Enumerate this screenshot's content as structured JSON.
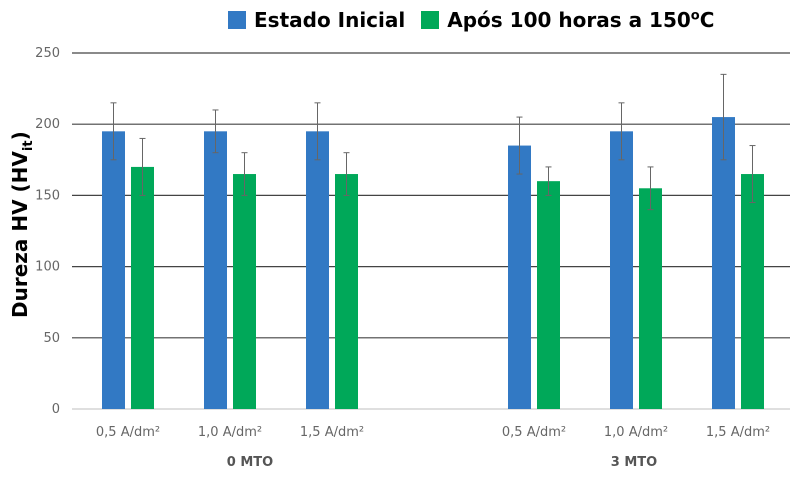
{
  "chart_data": {
    "type": "bar",
    "ylabel": "Dureza HV (HV",
    "ylabel_sub": "it",
    "ylabel_close": ")",
    "ylim": [
      0,
      250
    ],
    "yticks": [
      0,
      50,
      100,
      150,
      200,
      250
    ],
    "grid": true,
    "legend_position": "top",
    "groups": [
      {
        "label": "0 MTO",
        "categories": [
          "0,5 A/dm²",
          "1,0 A/dm²",
          "1,5 A/dm²"
        ]
      },
      {
        "label": "3 MTO",
        "categories": [
          "0,5 A/dm²",
          "1,0 A/dm²",
          "1,5 A/dm²"
        ]
      }
    ],
    "series": [
      {
        "name": "Estado Inicial",
        "color": "#3279C4",
        "values": [
          195,
          195,
          195,
          185,
          195,
          205
        ],
        "errors": [
          20,
          15,
          20,
          20,
          20,
          30
        ]
      },
      {
        "name": "Após 100 horas a 150",
        "name_sup": "o",
        "name_tail": "C",
        "color": "#00A859",
        "values": [
          170,
          165,
          165,
          160,
          155,
          165
        ],
        "errors": [
          20,
          15,
          15,
          10,
          15,
          20
        ]
      }
    ]
  }
}
